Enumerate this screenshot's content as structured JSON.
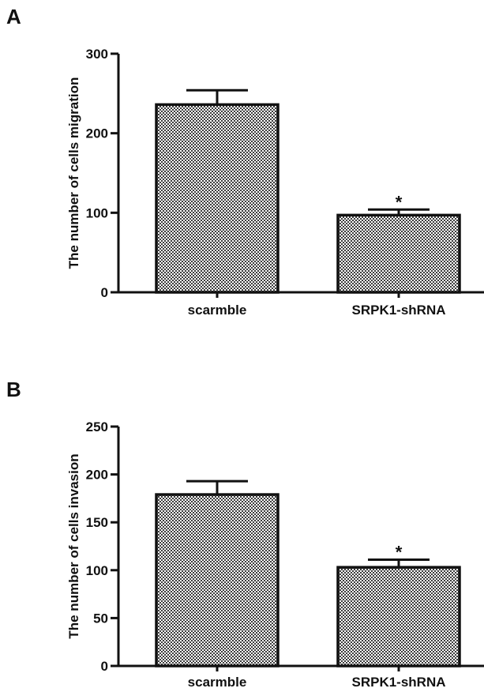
{
  "chart_data": [
    {
      "panel": "A",
      "type": "bar",
      "categories": [
        "scarmble",
        "SRPK1-shRNA"
      ],
      "values": [
        236,
        97
      ],
      "errors": [
        18,
        7
      ],
      "significance": [
        "",
        "*"
      ],
      "ylabel": "The number of cells migration",
      "ylim": [
        0,
        300
      ],
      "yticks": [
        0,
        100,
        200,
        300
      ],
      "bar_fill": "checkerboard",
      "grid": false
    },
    {
      "panel": "B",
      "type": "bar",
      "categories": [
        "scarmble",
        "SRPK1-shRNA"
      ],
      "values": [
        179,
        103
      ],
      "errors": [
        14,
        8
      ],
      "significance": [
        "",
        "*"
      ],
      "ylabel": "The number of cells invasion",
      "ylim": [
        0,
        250
      ],
      "yticks": [
        0,
        50,
        100,
        150,
        200,
        250
      ],
      "bar_fill": "checkerboard",
      "grid": false
    }
  ],
  "colors": {
    "ink": "#111111",
    "check_dark": "#3c3c3c",
    "check_light": "#ffffff"
  }
}
